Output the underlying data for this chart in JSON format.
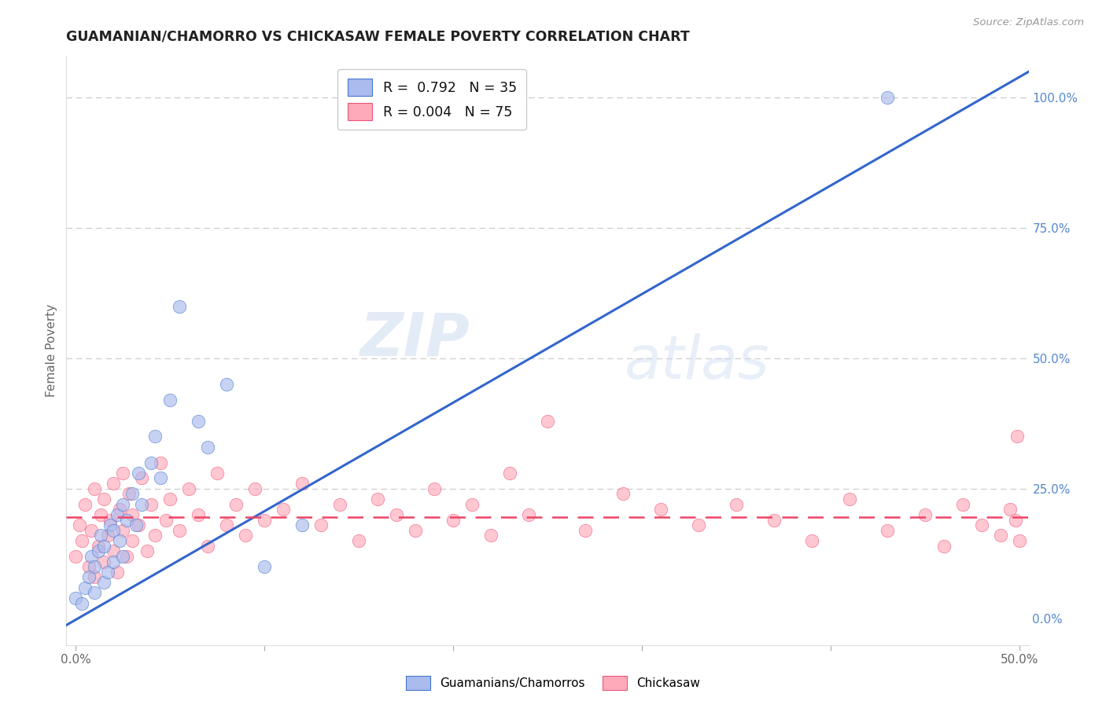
{
  "title": "GUAMANIAN/CHAMORRO VS CHICKASAW FEMALE POVERTY CORRELATION CHART",
  "source": "Source: ZipAtlas.com",
  "ylabel": "Female Poverty",
  "xlim": [
    -0.005,
    0.505
  ],
  "ylim": [
    -0.05,
    1.08
  ],
  "xticks": [
    0.0,
    0.1,
    0.2,
    0.3,
    0.4,
    0.5
  ],
  "xticklabels": [
    "0.0%",
    "",
    "",
    "",
    "",
    "50.0%"
  ],
  "yticks_right": [
    0.0,
    0.25,
    0.5,
    0.75,
    1.0
  ],
  "yticklabels_right": [
    "0.0%",
    "25.0%",
    "50.0%",
    "75.0%",
    "100.0%"
  ],
  "legend_blue_label": "R =  0.792   N = 35",
  "legend_pink_label": "R = 0.004   N = 75",
  "blue_fill_color": "#AABBEE",
  "pink_fill_color": "#FFAABB",
  "blue_edge_color": "#4477CC",
  "pink_edge_color": "#EE5577",
  "blue_line_color": "#3366CC",
  "pink_line_color": "#EE4466",
  "watermark_zip": "ZIP",
  "watermark_atlas": "atlas",
  "grid_color": "#CCCCCC",
  "blue_scatter_x": [
    0.0,
    0.003,
    0.005,
    0.007,
    0.008,
    0.01,
    0.01,
    0.012,
    0.013,
    0.015,
    0.015,
    0.017,
    0.018,
    0.02,
    0.02,
    0.022,
    0.023,
    0.025,
    0.025,
    0.027,
    0.03,
    0.032,
    0.033,
    0.035,
    0.04,
    0.042,
    0.045,
    0.05,
    0.055,
    0.065,
    0.07,
    0.08,
    0.1,
    0.12,
    0.43
  ],
  "blue_scatter_y": [
    0.04,
    0.03,
    0.06,
    0.08,
    0.12,
    0.05,
    0.1,
    0.13,
    0.16,
    0.07,
    0.14,
    0.09,
    0.18,
    0.11,
    0.17,
    0.2,
    0.15,
    0.12,
    0.22,
    0.19,
    0.24,
    0.18,
    0.28,
    0.22,
    0.3,
    0.35,
    0.27,
    0.42,
    0.6,
    0.38,
    0.33,
    0.45,
    0.1,
    0.18,
    1.0
  ],
  "pink_scatter_x": [
    0.0,
    0.002,
    0.003,
    0.005,
    0.007,
    0.008,
    0.01,
    0.01,
    0.012,
    0.013,
    0.015,
    0.015,
    0.017,
    0.018,
    0.02,
    0.02,
    0.022,
    0.023,
    0.025,
    0.025,
    0.027,
    0.028,
    0.03,
    0.03,
    0.033,
    0.035,
    0.038,
    0.04,
    0.042,
    0.045,
    0.048,
    0.05,
    0.055,
    0.06,
    0.065,
    0.07,
    0.075,
    0.08,
    0.085,
    0.09,
    0.095,
    0.1,
    0.11,
    0.12,
    0.13,
    0.14,
    0.15,
    0.16,
    0.17,
    0.18,
    0.19,
    0.2,
    0.21,
    0.22,
    0.23,
    0.24,
    0.25,
    0.27,
    0.29,
    0.31,
    0.33,
    0.35,
    0.37,
    0.39,
    0.41,
    0.43,
    0.45,
    0.46,
    0.47,
    0.48,
    0.49,
    0.495,
    0.498,
    0.499,
    0.5
  ],
  "pink_scatter_y": [
    0.12,
    0.18,
    0.15,
    0.22,
    0.1,
    0.17,
    0.08,
    0.25,
    0.14,
    0.2,
    0.11,
    0.23,
    0.16,
    0.19,
    0.13,
    0.26,
    0.09,
    0.21,
    0.17,
    0.28,
    0.12,
    0.24,
    0.15,
    0.2,
    0.18,
    0.27,
    0.13,
    0.22,
    0.16,
    0.3,
    0.19,
    0.23,
    0.17,
    0.25,
    0.2,
    0.14,
    0.28,
    0.18,
    0.22,
    0.16,
    0.25,
    0.19,
    0.21,
    0.26,
    0.18,
    0.22,
    0.15,
    0.23,
    0.2,
    0.17,
    0.25,
    0.19,
    0.22,
    0.16,
    0.28,
    0.2,
    0.38,
    0.17,
    0.24,
    0.21,
    0.18,
    0.22,
    0.19,
    0.15,
    0.23,
    0.17,
    0.2,
    0.14,
    0.22,
    0.18,
    0.16,
    0.21,
    0.19,
    0.35,
    0.15
  ],
  "blue_trend_x0": -0.005,
  "blue_trend_x1": 0.505,
  "blue_trend_y0": -0.012,
  "blue_trend_y1": 1.05,
  "pink_trend_y": 0.195
}
